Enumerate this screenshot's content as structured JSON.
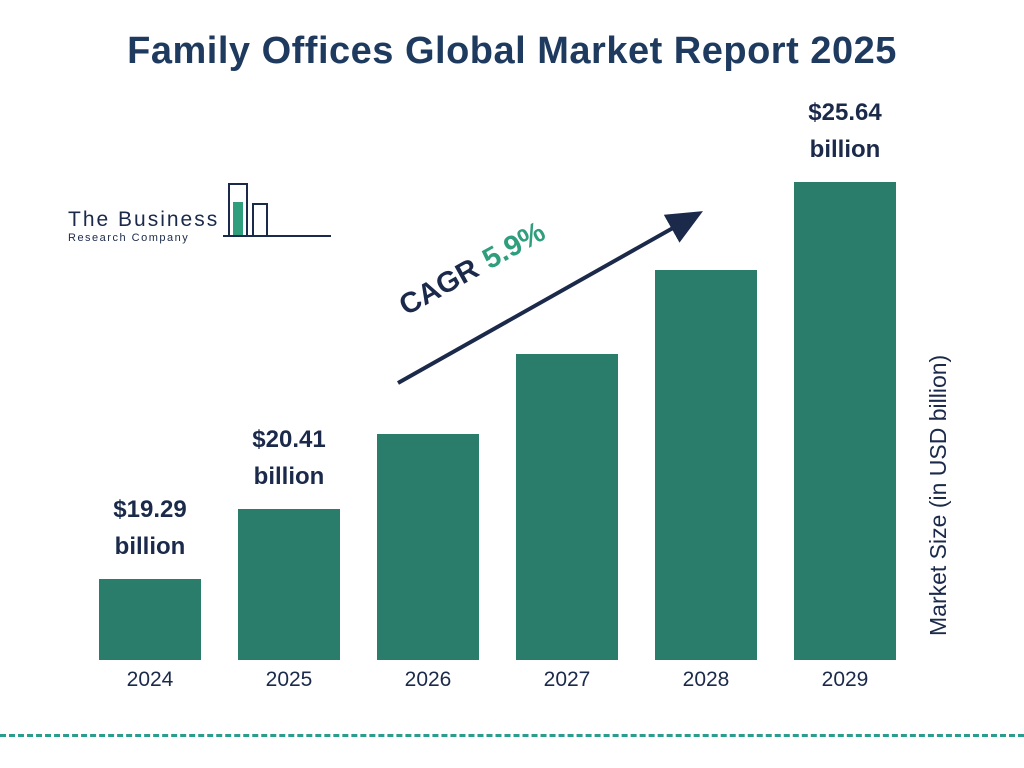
{
  "title": "Family Offices Global Market Report 2025",
  "logo": {
    "line1": "The Business",
    "line2": "Research Company"
  },
  "cagr": {
    "label": "CAGR",
    "value": "5.9%"
  },
  "ylabel": "Market Size (in USD billion)",
  "colors": {
    "bar": "#2a7c6b",
    "navy": "#1b2a4a",
    "title": "#1e3a5f",
    "accent_green": "#2f9e7d",
    "dashed_line": "#2a9d8f"
  },
  "chart_data": {
    "type": "bar",
    "title": "Family Offices Global Market Report 2025",
    "xlabel": "",
    "ylabel": "Market Size (in USD billion)",
    "categories": [
      "2024",
      "2025",
      "2026",
      "2027",
      "2028",
      "2029"
    ],
    "values": [
      19.29,
      20.41,
      21.62,
      22.89,
      24.24,
      25.64
    ],
    "value_labels": [
      [
        "$19.29",
        "billion"
      ],
      [
        "$20.41",
        "billion"
      ],
      null,
      null,
      null,
      [
        "$25.64",
        "billion"
      ]
    ],
    "cagr": "5.9%",
    "baseline_value": 18,
    "grid": "off",
    "legend": "none"
  }
}
